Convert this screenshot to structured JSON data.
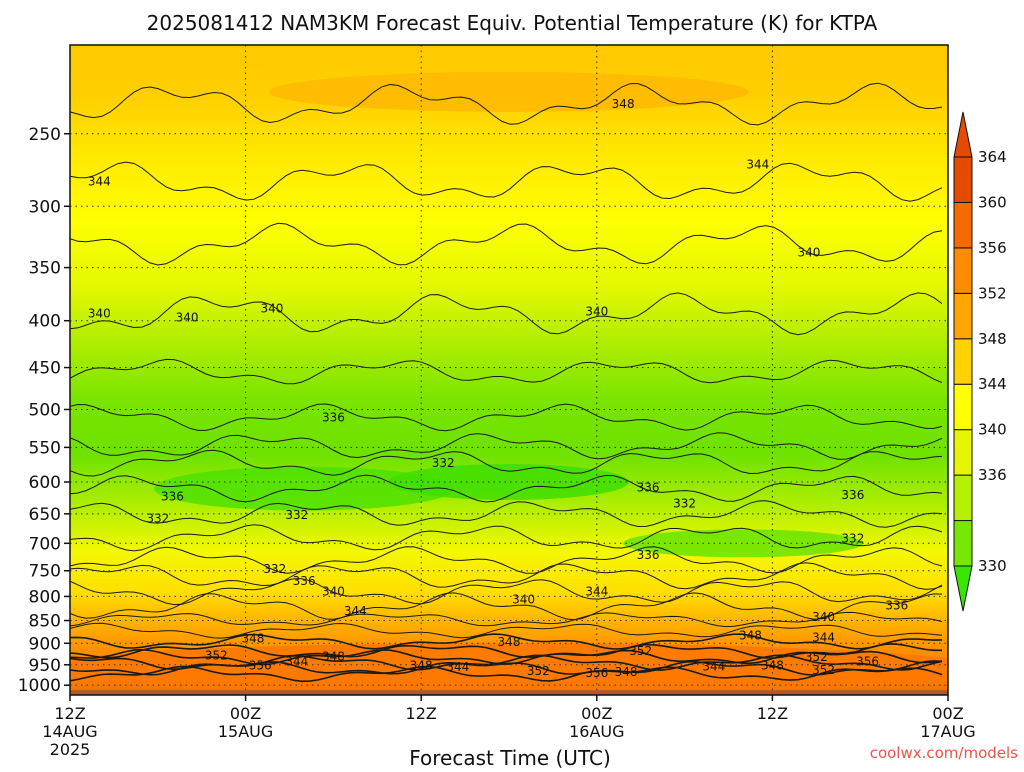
{
  "chart_data": {
    "type": "heatmap",
    "title": "2025081412 NAM3KM Forecast Equiv. Potential Temperature (K) for KTPA",
    "xlabel": "Forecast Time (UTC)",
    "ylabel": "",
    "credit": "coolwx.com/models",
    "x_ticks": [
      {
        "t": 0,
        "top": "12Z",
        "bottom": "14AUG",
        "year": "2025"
      },
      {
        "t": 12,
        "top": "00Z",
        "bottom": "15AUG",
        "year": ""
      },
      {
        "t": 24,
        "top": "12Z",
        "bottom": "",
        "year": ""
      },
      {
        "t": 36,
        "top": "00Z",
        "bottom": "16AUG",
        "year": ""
      },
      {
        "t": 48,
        "top": "12Z",
        "bottom": "",
        "year": ""
      },
      {
        "t": 60,
        "top": "00Z",
        "bottom": "17AUG",
        "year": ""
      }
    ],
    "xlim": [
      0,
      60
    ],
    "y_ticks": [
      250,
      300,
      350,
      400,
      450,
      500,
      550,
      600,
      650,
      700,
      750,
      800,
      850,
      900,
      950,
      1000
    ],
    "ylim": [
      1025,
      200
    ],
    "y_scale": "log",
    "y_gridlines": true,
    "colorbar": {
      "levels": [
        330,
        334,
        336,
        340,
        344,
        348,
        352,
        356,
        360,
        364
      ],
      "colors": [
        "#38e600",
        "#78e600",
        "#b4f000",
        "#e6f500",
        "#ffff00",
        "#ffd200",
        "#ffa500",
        "#ff8c00",
        "#f56a00",
        "#e44a00"
      ]
    },
    "contour_labels": [
      {
        "text": "348",
        "t": 37.8,
        "p": 232
      },
      {
        "text": "344",
        "t": 2.0,
        "p": 282
      },
      {
        "text": "344",
        "t": 47.0,
        "p": 270
      },
      {
        "text": "340",
        "t": 50.5,
        "p": 337
      },
      {
        "text": "340",
        "t": 2.0,
        "p": 393
      },
      {
        "text": "340",
        "t": 8.0,
        "p": 397
      },
      {
        "text": "340",
        "t": 13.8,
        "p": 388
      },
      {
        "text": "340",
        "t": 36.0,
        "p": 391
      },
      {
        "text": "336",
        "t": 18.0,
        "p": 510
      },
      {
        "text": "332",
        "t": 25.5,
        "p": 572
      },
      {
        "text": "336",
        "t": 7.0,
        "p": 622
      },
      {
        "text": "336",
        "t": 39.5,
        "p": 608
      },
      {
        "text": "332",
        "t": 42.0,
        "p": 633
      },
      {
        "text": "336",
        "t": 53.5,
        "p": 620
      },
      {
        "text": "332",
        "t": 6.0,
        "p": 658
      },
      {
        "text": "332",
        "t": 15.5,
        "p": 652
      },
      {
        "text": "332",
        "t": 53.5,
        "p": 692
      },
      {
        "text": "336",
        "t": 39.5,
        "p": 721
      },
      {
        "text": "332",
        "t": 14.0,
        "p": 747
      },
      {
        "text": "336",
        "t": 16.0,
        "p": 770
      },
      {
        "text": "340",
        "t": 18.0,
        "p": 790
      },
      {
        "text": "344",
        "t": 19.5,
        "p": 830
      },
      {
        "text": "340",
        "t": 31.0,
        "p": 806
      },
      {
        "text": "344",
        "t": 36.0,
        "p": 790
      },
      {
        "text": "340",
        "t": 51.5,
        "p": 843
      },
      {
        "text": "336",
        "t": 56.5,
        "p": 818
      },
      {
        "text": "348",
        "t": 12.5,
        "p": 889
      },
      {
        "text": "348",
        "t": 30.0,
        "p": 897
      },
      {
        "text": "348",
        "t": 46.5,
        "p": 883
      },
      {
        "text": "344",
        "t": 51.5,
        "p": 887
      },
      {
        "text": "352",
        "t": 10.0,
        "p": 928
      },
      {
        "text": "356",
        "t": 13.0,
        "p": 952
      },
      {
        "text": "344",
        "t": 15.5,
        "p": 942
      },
      {
        "text": "348",
        "t": 18.0,
        "p": 930
      },
      {
        "text": "348",
        "t": 24.0,
        "p": 952
      },
      {
        "text": "344",
        "t": 26.5,
        "p": 955
      },
      {
        "text": "352",
        "t": 32.0,
        "p": 965
      },
      {
        "text": "356",
        "t": 36.0,
        "p": 970
      },
      {
        "text": "348",
        "t": 38.0,
        "p": 968
      },
      {
        "text": "352",
        "t": 39.0,
        "p": 918
      },
      {
        "text": "344",
        "t": 44.0,
        "p": 954
      },
      {
        "text": "348",
        "t": 48.0,
        "p": 952
      },
      {
        "text": "352",
        "t": 51.0,
        "p": 932
      },
      {
        "text": "352",
        "t": 51.5,
        "p": 962
      },
      {
        "text": "356",
        "t": 54.5,
        "p": 942
      }
    ]
  }
}
